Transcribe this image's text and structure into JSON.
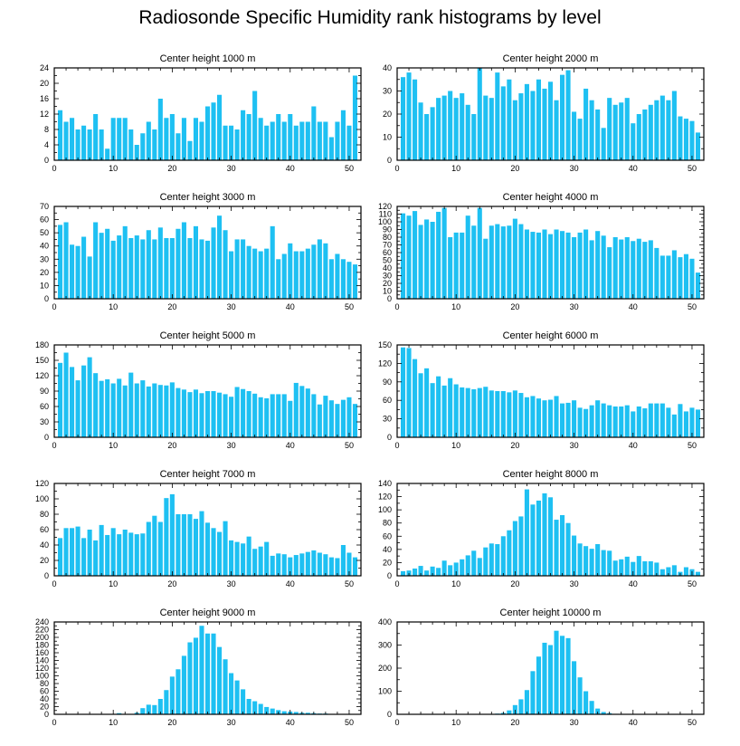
{
  "page": {
    "title": "Radiosonde Specific Humidity rank histograms by level"
  },
  "style": {
    "bar_color": "#1EC0F2",
    "axis_color": "#000000"
  },
  "chart_data": [
    {
      "type": "bar",
      "title": "Center height 1000 m",
      "xlim": [
        0,
        52
      ],
      "xticks": [
        0,
        10,
        20,
        30,
        40,
        50
      ],
      "ylim": [
        0,
        24
      ],
      "yticks": [
        0,
        4,
        8,
        12,
        16,
        20,
        24
      ],
      "x": [
        1,
        2,
        3,
        4,
        5,
        6,
        7,
        8,
        9,
        10,
        11,
        12,
        13,
        14,
        15,
        16,
        17,
        18,
        19,
        20,
        21,
        22,
        23,
        24,
        25,
        26,
        27,
        28,
        29,
        30,
        31,
        32,
        33,
        34,
        35,
        36,
        37,
        38,
        39,
        40,
        41,
        42,
        43,
        44,
        45,
        46,
        47,
        48,
        49,
        50,
        51
      ],
      "values": [
        13,
        10,
        11,
        8,
        9,
        8,
        12,
        8,
        3,
        11,
        11,
        11,
        8,
        4,
        7,
        10,
        8,
        16,
        11,
        12,
        7,
        11,
        5,
        11,
        10,
        14,
        15,
        17,
        9,
        9,
        8,
        13,
        12,
        18,
        11,
        9,
        10,
        12,
        10,
        12,
        9,
        10,
        10,
        14,
        10,
        10,
        6,
        10,
        13,
        9,
        22
      ]
    },
    {
      "type": "bar",
      "title": "Center height 2000 m",
      "xlim": [
        0,
        52
      ],
      "xticks": [
        0,
        10,
        20,
        30,
        40,
        50
      ],
      "ylim": [
        0,
        40
      ],
      "yticks": [
        0,
        10,
        20,
        30,
        40
      ],
      "x": [
        1,
        2,
        3,
        4,
        5,
        6,
        7,
        8,
        9,
        10,
        11,
        12,
        13,
        14,
        15,
        16,
        17,
        18,
        19,
        20,
        21,
        22,
        23,
        24,
        25,
        26,
        27,
        28,
        29,
        30,
        31,
        32,
        33,
        34,
        35,
        36,
        37,
        38,
        39,
        40,
        41,
        42,
        43,
        44,
        45,
        46,
        47,
        48,
        49,
        50,
        51
      ],
      "values": [
        36,
        38,
        35,
        25,
        20,
        23,
        27,
        28,
        30,
        27,
        29,
        24,
        20,
        40,
        28,
        27,
        38,
        32,
        35,
        26,
        29,
        33,
        30,
        35,
        31,
        34,
        26,
        37,
        39,
        21,
        18,
        31,
        26,
        22,
        14,
        27,
        24,
        25,
        27,
        16,
        20,
        22,
        24,
        26,
        28,
        26,
        30,
        19,
        18,
        17,
        12
      ]
    },
    {
      "type": "bar",
      "title": "Center height 3000 m",
      "xlim": [
        0,
        52
      ],
      "xticks": [
        0,
        10,
        20,
        30,
        40,
        50
      ],
      "ylim": [
        0,
        70
      ],
      "yticks": [
        0,
        10,
        20,
        30,
        40,
        50,
        60,
        70
      ],
      "x": [
        1,
        2,
        3,
        4,
        5,
        6,
        7,
        8,
        9,
        10,
        11,
        12,
        13,
        14,
        15,
        16,
        17,
        18,
        19,
        20,
        21,
        22,
        23,
        24,
        25,
        26,
        27,
        28,
        29,
        30,
        31,
        32,
        33,
        34,
        35,
        36,
        37,
        38,
        39,
        40,
        41,
        42,
        43,
        44,
        45,
        46,
        47,
        48,
        49,
        50,
        51
      ],
      "values": [
        56,
        58,
        41,
        40,
        47,
        32,
        58,
        50,
        53,
        44,
        48,
        55,
        46,
        48,
        45,
        52,
        45,
        54,
        46,
        46,
        53,
        58,
        46,
        55,
        45,
        44,
        54,
        63,
        52,
        36,
        45,
        45,
        40,
        38,
        36,
        38,
        55,
        30,
        34,
        42,
        36,
        36,
        38,
        41,
        45,
        42,
        30,
        34,
        30,
        28,
        26
      ]
    },
    {
      "type": "bar",
      "title": "Center height 4000 m",
      "xlim": [
        0,
        52
      ],
      "xticks": [
        0,
        10,
        20,
        30,
        40,
        50
      ],
      "ylim": [
        0,
        120
      ],
      "yticks": [
        0,
        10,
        20,
        30,
        40,
        50,
        60,
        70,
        80,
        90,
        100,
        110,
        120
      ],
      "x": [
        1,
        2,
        3,
        4,
        5,
        6,
        7,
        8,
        9,
        10,
        11,
        12,
        13,
        14,
        15,
        16,
        17,
        18,
        19,
        20,
        21,
        22,
        23,
        24,
        25,
        26,
        27,
        28,
        29,
        30,
        31,
        32,
        33,
        34,
        35,
        36,
        37,
        38,
        39,
        40,
        41,
        42,
        43,
        44,
        45,
        46,
        47,
        48,
        49,
        50,
        51
      ],
      "values": [
        111,
        108,
        114,
        96,
        103,
        100,
        113,
        118,
        80,
        86,
        86,
        108,
        95,
        118,
        78,
        95,
        97,
        94,
        95,
        104,
        97,
        90,
        87,
        86,
        90,
        84,
        90,
        88,
        86,
        80,
        86,
        90,
        76,
        88,
        82,
        67,
        80,
        77,
        80,
        75,
        78,
        74,
        76,
        66,
        56,
        56,
        63,
        54,
        58,
        52,
        34
      ]
    },
    {
      "type": "bar",
      "title": "Center height 5000 m",
      "xlim": [
        0,
        52
      ],
      "xticks": [
        0,
        10,
        20,
        30,
        40,
        50
      ],
      "ylim": [
        0,
        180
      ],
      "yticks": [
        0,
        30,
        60,
        90,
        120,
        150,
        180
      ],
      "x": [
        1,
        2,
        3,
        4,
        5,
        6,
        7,
        8,
        9,
        10,
        11,
        12,
        13,
        14,
        15,
        16,
        17,
        18,
        19,
        20,
        21,
        22,
        23,
        24,
        25,
        26,
        27,
        28,
        29,
        30,
        31,
        32,
        33,
        34,
        35,
        36,
        37,
        38,
        39,
        40,
        41,
        42,
        43,
        44,
        45,
        46,
        47,
        48,
        49,
        50,
        51
      ],
      "values": [
        145,
        165,
        137,
        111,
        140,
        156,
        125,
        110,
        113,
        105,
        114,
        101,
        126,
        105,
        111,
        99,
        105,
        102,
        101,
        107,
        96,
        93,
        88,
        93,
        86,
        90,
        90,
        87,
        84,
        79,
        98,
        94,
        90,
        85,
        78,
        76,
        84,
        84,
        84,
        71,
        106,
        100,
        95,
        84,
        64,
        81,
        72,
        65,
        73,
        78,
        65
      ]
    },
    {
      "type": "bar",
      "title": "Center height 6000 m",
      "xlim": [
        0,
        52
      ],
      "xticks": [
        0,
        10,
        20,
        30,
        40,
        50
      ],
      "ylim": [
        0,
        150
      ],
      "yticks": [
        0,
        30,
        60,
        90,
        120,
        150
      ],
      "x": [
        1,
        2,
        3,
        4,
        5,
        6,
        7,
        8,
        9,
        10,
        11,
        12,
        13,
        14,
        15,
        16,
        17,
        18,
        19,
        20,
        21,
        22,
        23,
        24,
        25,
        26,
        27,
        28,
        29,
        30,
        31,
        32,
        33,
        34,
        35,
        36,
        37,
        38,
        39,
        40,
        41,
        42,
        43,
        44,
        45,
        46,
        47,
        48,
        49,
        50,
        51
      ],
      "values": [
        146,
        145,
        127,
        104,
        112,
        88,
        99,
        84,
        96,
        86,
        81,
        80,
        78,
        80,
        82,
        76,
        75,
        75,
        73,
        76,
        72,
        65,
        67,
        63,
        60,
        61,
        67,
        55,
        56,
        60,
        48,
        46,
        52,
        60,
        55,
        52,
        50,
        50,
        52,
        42,
        50,
        47,
        55,
        55,
        55,
        48,
        37,
        54,
        42,
        48,
        45
      ]
    },
    {
      "type": "bar",
      "title": "Center height 7000 m",
      "xlim": [
        0,
        52
      ],
      "xticks": [
        0,
        10,
        20,
        30,
        40,
        50
      ],
      "ylim": [
        0,
        120
      ],
      "yticks": [
        0,
        20,
        40,
        60,
        80,
        100,
        120
      ],
      "x": [
        1,
        2,
        3,
        4,
        5,
        6,
        7,
        8,
        9,
        10,
        11,
        12,
        13,
        14,
        15,
        16,
        17,
        18,
        19,
        20,
        21,
        22,
        23,
        24,
        25,
        26,
        27,
        28,
        29,
        30,
        31,
        32,
        33,
        34,
        35,
        36,
        37,
        38,
        39,
        40,
        41,
        42,
        43,
        44,
        45,
        46,
        47,
        48,
        49,
        50,
        51
      ],
      "values": [
        49,
        62,
        62,
        64,
        49,
        60,
        46,
        66,
        53,
        62,
        54,
        60,
        56,
        54,
        55,
        70,
        78,
        70,
        101,
        106,
        80,
        80,
        80,
        74,
        84,
        69,
        62,
        57,
        71,
        46,
        44,
        42,
        51,
        35,
        38,
        44,
        26,
        29,
        28,
        24,
        27,
        29,
        31,
        33,
        30,
        28,
        24,
        23,
        40,
        30,
        24
      ]
    },
    {
      "type": "bar",
      "title": "Center height 8000 m",
      "xlim": [
        0,
        52
      ],
      "xticks": [
        0,
        10,
        20,
        30,
        40,
        50
      ],
      "ylim": [
        0,
        140
      ],
      "yticks": [
        0,
        20,
        40,
        60,
        80,
        100,
        120,
        140
      ],
      "x": [
        1,
        2,
        3,
        4,
        5,
        6,
        7,
        8,
        9,
        10,
        11,
        12,
        13,
        14,
        15,
        16,
        17,
        18,
        19,
        20,
        21,
        22,
        23,
        24,
        25,
        26,
        27,
        28,
        29,
        30,
        31,
        32,
        33,
        34,
        35,
        36,
        37,
        38,
        39,
        40,
        41,
        42,
        43,
        44,
        45,
        46,
        47,
        48,
        49,
        50,
        51
      ],
      "values": [
        7,
        8,
        11,
        15,
        8,
        14,
        12,
        23,
        16,
        20,
        25,
        31,
        38,
        27,
        43,
        49,
        48,
        60,
        69,
        83,
        90,
        131,
        108,
        114,
        125,
        119,
        85,
        92,
        80,
        61,
        49,
        45,
        41,
        48,
        39,
        38,
        23,
        25,
        29,
        21,
        30,
        22,
        22,
        20,
        10,
        13,
        16,
        6,
        13,
        10,
        6
      ]
    },
    {
      "type": "bar",
      "title": "Center height 9000 m",
      "xlim": [
        0,
        52
      ],
      "xticks": [
        0,
        10,
        20,
        30,
        40,
        50
      ],
      "ylim": [
        0,
        240
      ],
      "yticks": [
        0,
        20,
        40,
        60,
        80,
        100,
        120,
        140,
        160,
        180,
        200,
        220,
        240
      ],
      "x": [
        1,
        2,
        3,
        4,
        5,
        6,
        7,
        8,
        9,
        10,
        11,
        12,
        13,
        14,
        15,
        16,
        17,
        18,
        19,
        20,
        21,
        22,
        23,
        24,
        25,
        26,
        27,
        28,
        29,
        30,
        31,
        32,
        33,
        34,
        35,
        36,
        37,
        38,
        39,
        40,
        41,
        42,
        43,
        44,
        45,
        46,
        47,
        48,
        49,
        50,
        51
      ],
      "values": [
        0,
        0,
        0,
        0,
        1,
        1,
        1,
        0,
        0,
        0,
        3,
        1,
        1,
        4,
        16,
        25,
        24,
        40,
        63,
        98,
        117,
        152,
        187,
        199,
        230,
        210,
        210,
        175,
        143,
        107,
        88,
        65,
        40,
        34,
        27,
        19,
        15,
        11,
        8,
        7,
        6,
        4,
        4,
        3,
        2,
        2,
        1,
        0,
        1,
        0,
        0
      ]
    },
    {
      "type": "bar",
      "title": "Center height 10000 m",
      "xlim": [
        0,
        52
      ],
      "xticks": [
        0,
        10,
        20,
        30,
        40,
        50
      ],
      "ylim": [
        0,
        400
      ],
      "yticks": [
        0,
        100,
        200,
        300,
        400
      ],
      "x": [
        1,
        2,
        3,
        4,
        5,
        6,
        7,
        8,
        9,
        10,
        11,
        12,
        13,
        14,
        15,
        16,
        17,
        18,
        19,
        20,
        21,
        22,
        23,
        24,
        25,
        26,
        27,
        28,
        29,
        30,
        31,
        32,
        33,
        34,
        35,
        36,
        37,
        38,
        39,
        40,
        41,
        42,
        43,
        44,
        45,
        46,
        47,
        48,
        49,
        50,
        51
      ],
      "values": [
        0,
        0,
        0,
        0,
        0,
        0,
        0,
        0,
        0,
        0,
        0,
        0,
        0,
        0,
        0,
        1,
        3,
        6,
        17,
        40,
        65,
        105,
        187,
        250,
        310,
        300,
        362,
        340,
        330,
        230,
        160,
        100,
        58,
        25,
        10,
        5,
        2,
        0,
        0,
        0,
        0,
        0,
        0,
        0,
        0,
        0,
        0,
        0,
        0,
        0,
        0
      ]
    }
  ]
}
